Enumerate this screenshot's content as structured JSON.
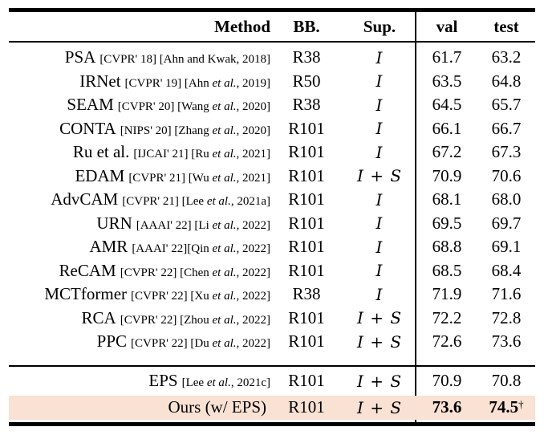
{
  "colors": {
    "highlight": "#f9e1d3",
    "rule": "#000000"
  },
  "table": {
    "headers": {
      "method": "Method",
      "bb": "BB.",
      "sup": "Sup.",
      "val": "val",
      "test": "test"
    },
    "rows": [
      {
        "name": "PSA",
        "cite1": "[CVPR' 18] [Ahn and Kwak, 2018]",
        "cite_i": "",
        "cite2": "",
        "bb": "R38",
        "sup": "I",
        "val": "61.7",
        "test": "63.2",
        "dagger": ""
      },
      {
        "name": "IRNet",
        "cite1": "[CVPR' 19] [Ahn ",
        "cite_i": "et al.",
        "cite2": ", 2019]",
        "bb": "R50",
        "sup": "I",
        "val": "63.5",
        "test": "64.8",
        "dagger": ""
      },
      {
        "name": "SEAM",
        "cite1": "[CVPR' 20] [Wang ",
        "cite_i": "et al.",
        "cite2": ", 2020]",
        "bb": "R38",
        "sup": "I",
        "val": "64.5",
        "test": "65.7",
        "dagger": ""
      },
      {
        "name": "CONTA",
        "cite1": "[NIPS' 20] [Zhang ",
        "cite_i": "et al.",
        "cite2": ", 2020]",
        "bb": "R101",
        "sup": "I",
        "val": "66.1",
        "test": "66.7",
        "dagger": ""
      },
      {
        "name": "Ru et al.",
        "cite1": "[IJCAI' 21] [Ru ",
        "cite_i": "et al.",
        "cite2": ", 2021]",
        "bb": "R101",
        "sup": "I",
        "val": "67.2",
        "test": "67.3",
        "dagger": ""
      },
      {
        "name": "EDAM",
        "cite1": "[CVPR' 21] [Wu ",
        "cite_i": "et al.",
        "cite2": ", 2021]",
        "bb": "R101",
        "sup": "I + S",
        "val": "70.9",
        "test": "70.6",
        "dagger": ""
      },
      {
        "name": "AdvCAM",
        "cite1": "[CVPR' 21] [Lee ",
        "cite_i": "et al.",
        "cite2": ", 2021a]",
        "bb": "R101",
        "sup": "I",
        "val": "68.1",
        "test": "68.0",
        "dagger": ""
      },
      {
        "name": "URN",
        "cite1": "[AAAI' 22] [Li ",
        "cite_i": "et al.",
        "cite2": ", 2022]",
        "bb": "R101",
        "sup": "I",
        "val": "69.5",
        "test": "69.7",
        "dagger": ""
      },
      {
        "name": "AMR",
        "cite1": "[AAAI' 22][Qin ",
        "cite_i": "et al.",
        "cite2": ", 2022]",
        "bb": "R101",
        "sup": "I",
        "val": "68.8",
        "test": "69.1",
        "dagger": ""
      },
      {
        "name": "ReCAM",
        "cite1": "[CVPR' 22] [Chen ",
        "cite_i": "et al.",
        "cite2": ", 2022]",
        "bb": "R101",
        "sup": "I",
        "val": "68.5",
        "test": "68.4",
        "dagger": ""
      },
      {
        "name": "MCTformer",
        "cite1": "[CVPR' 22] [Xu ",
        "cite_i": "et al.",
        "cite2": ", 2022]",
        "bb": "R38",
        "sup": "I",
        "val": "71.9",
        "test": "71.6",
        "dagger": ""
      },
      {
        "name": "RCA",
        "cite1": "[CVPR' 22] [Zhou ",
        "cite_i": "et al.",
        "cite2": ", 2022]",
        "bb": "R101",
        "sup": "I + S",
        "val": "72.2",
        "test": "72.8",
        "dagger": ""
      },
      {
        "name": "PPC",
        "cite1": "[CVPR' 22] [Du ",
        "cite_i": "et al.",
        "cite2": ", 2022]",
        "bb": "R101",
        "sup": "I + S",
        "val": "72.6",
        "test": "73.6",
        "dagger": ""
      },
      {
        "name": "EPS",
        "cite1": "[Lee ",
        "cite_i": "et al.",
        "cite2": ", 2021c]",
        "bb": "R101",
        "sup": "I + S",
        "val": "70.9",
        "test": "70.8",
        "dagger": ""
      },
      {
        "name": "Ours (w/ EPS)",
        "cite1": "",
        "cite_i": "",
        "cite2": "",
        "bb": "R101",
        "sup": "I + S",
        "val": "73.6",
        "test": "74.5",
        "dagger": "†"
      }
    ]
  }
}
